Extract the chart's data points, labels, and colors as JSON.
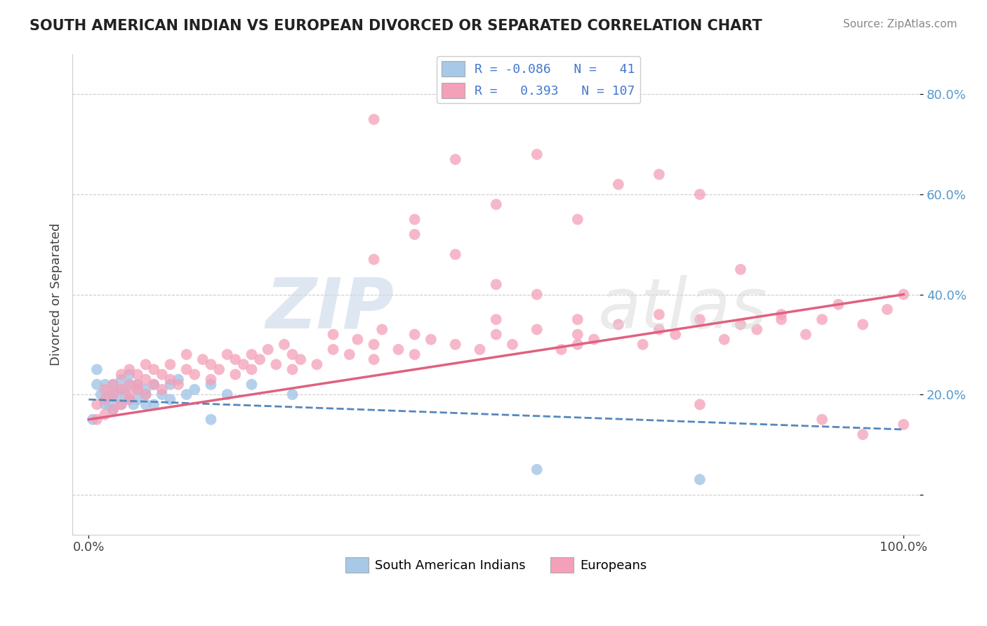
{
  "title": "SOUTH AMERICAN INDIAN VS EUROPEAN DIVORCED OR SEPARATED CORRELATION CHART",
  "source": "Source: ZipAtlas.com",
  "ylabel": "Divorced or Separated",
  "xlim": [
    -2,
    102
  ],
  "ylim": [
    -8,
    88
  ],
  "yticks": [
    0,
    20,
    40,
    60,
    80
  ],
  "ytick_labels": [
    "",
    "20.0%",
    "40.0%",
    "60.0%",
    "80.0%"
  ],
  "xticks": [
    0,
    100
  ],
  "xtick_labels": [
    "0.0%",
    "100.0%"
  ],
  "color_blue": "#a8c8e8",
  "color_pink": "#f4a0b8",
  "color_blue_line": "#5588bb",
  "color_pink_line": "#e06080",
  "watermark_zip": "ZIP",
  "watermark_atlas": "atlas",
  "blue_scatter_x": [
    0.5,
    1,
    1,
    1.5,
    2,
    2,
    2.5,
    2.5,
    3,
    3,
    3,
    3.5,
    4,
    4,
    4,
    4.5,
    5,
    5,
    5,
    5.5,
    6,
    6,
    6,
    7,
    7,
    7,
    8,
    8,
    9,
    10,
    10,
    11,
    12,
    13,
    15,
    15,
    17,
    20,
    25,
    55,
    75
  ],
  "blue_scatter_y": [
    15,
    22,
    25,
    20,
    18,
    22,
    20,
    18,
    17,
    20,
    22,
    19,
    21,
    18,
    23,
    20,
    22,
    19,
    24,
    18,
    21,
    19,
    22,
    20,
    18,
    21,
    22,
    18,
    20,
    22,
    19,
    23,
    20,
    21,
    22,
    15,
    20,
    22,
    20,
    5,
    3
  ],
  "pink_scatter_x": [
    1,
    1,
    2,
    2,
    2,
    3,
    3,
    3,
    4,
    4,
    4,
    5,
    5,
    5,
    5,
    6,
    6,
    6,
    7,
    7,
    7,
    8,
    8,
    9,
    9,
    10,
    10,
    11,
    12,
    12,
    13,
    14,
    15,
    15,
    16,
    17,
    18,
    18,
    19,
    20,
    20,
    21,
    22,
    23,
    24,
    25,
    25,
    26,
    28,
    30,
    30,
    32,
    33,
    35,
    35,
    36,
    38,
    40,
    40,
    42,
    45,
    48,
    50,
    50,
    52,
    55,
    58,
    60,
    60,
    62,
    65,
    68,
    70,
    70,
    72,
    75,
    78,
    80,
    82,
    85,
    88,
    90,
    92,
    95,
    98,
    100,
    35,
    40,
    45,
    50,
    55,
    60,
    65,
    70,
    75,
    80,
    85,
    90,
    95,
    100,
    35,
    40,
    45,
    50,
    55,
    60,
    75
  ],
  "pink_scatter_y": [
    15,
    18,
    16,
    19,
    21,
    17,
    20,
    22,
    18,
    21,
    24,
    19,
    22,
    25,
    20,
    21,
    24,
    22,
    20,
    23,
    26,
    22,
    25,
    21,
    24,
    23,
    26,
    22,
    25,
    28,
    24,
    27,
    23,
    26,
    25,
    28,
    24,
    27,
    26,
    25,
    28,
    27,
    29,
    26,
    30,
    25,
    28,
    27,
    26,
    29,
    32,
    28,
    31,
    27,
    30,
    33,
    29,
    28,
    32,
    31,
    30,
    29,
    32,
    35,
    30,
    33,
    29,
    32,
    35,
    31,
    34,
    30,
    33,
    36,
    32,
    35,
    31,
    34,
    33,
    36,
    32,
    35,
    38,
    34,
    37,
    40,
    75,
    55,
    67,
    58,
    68,
    55,
    62,
    64,
    60,
    45,
    35,
    15,
    12,
    14,
    47,
    52,
    48,
    42,
    40,
    30,
    18
  ],
  "blue_line_x": [
    0,
    100
  ],
  "blue_line_y": [
    19,
    13
  ],
  "pink_line_x": [
    0,
    100
  ],
  "pink_line_y": [
    15,
    40
  ],
  "legend_items": [
    {
      "label": "R = -0.086   N =   41",
      "color": "#a8c8e8"
    },
    {
      "label": "R =   0.393   N = 107",
      "color": "#f4a0b8"
    }
  ],
  "bottom_legend": [
    {
      "label": "South American Indians",
      "color": "#a8c8e8"
    },
    {
      "label": "Europeans",
      "color": "#f4a0b8"
    }
  ]
}
